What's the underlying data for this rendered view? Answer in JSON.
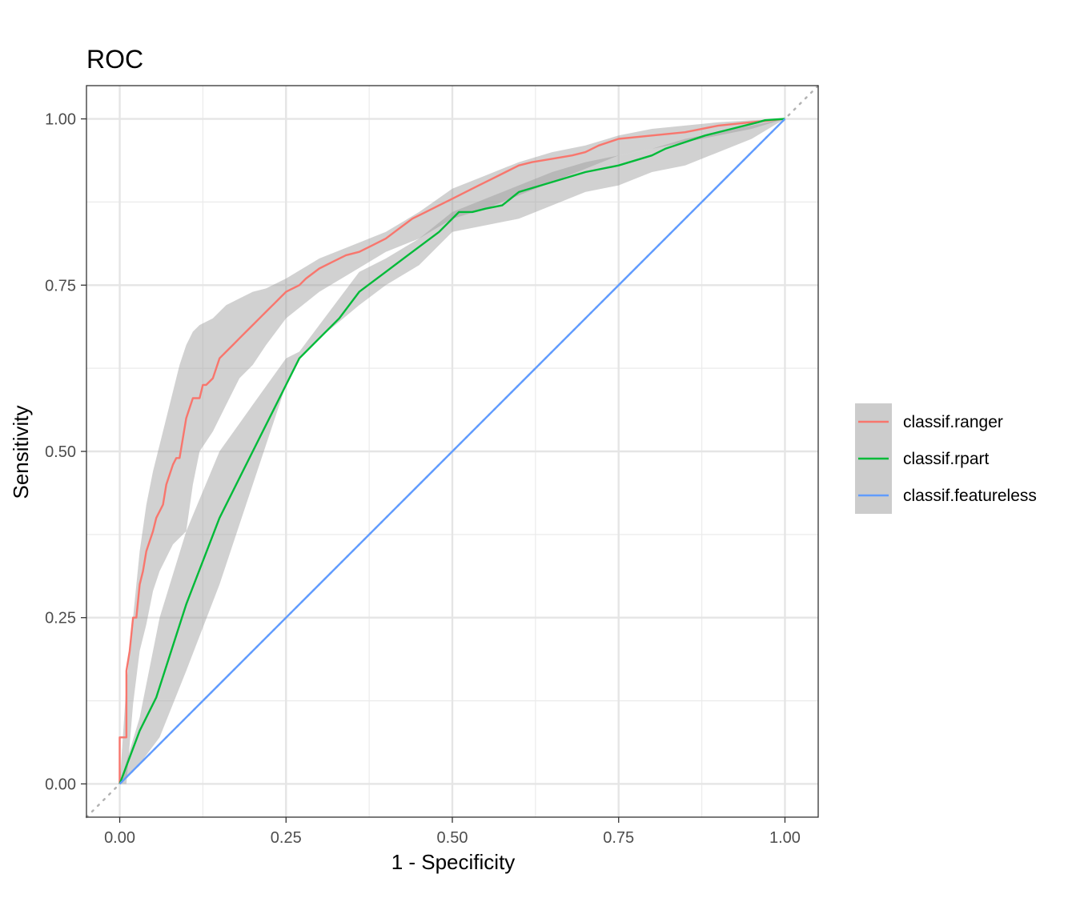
{
  "chart_data": {
    "type": "line",
    "title": "ROC",
    "xlabel": "1 - Specificity",
    "ylabel": "Sensitivity",
    "xlim": [
      -0.05,
      1.05
    ],
    "ylim": [
      -0.05,
      1.05
    ],
    "x_ticks": [
      "0.00",
      "0.25",
      "0.50",
      "0.75",
      "1.00"
    ],
    "y_ticks": [
      "0.00",
      "0.25",
      "0.50",
      "0.75",
      "1.00"
    ],
    "x_tick_values": [
      0,
      0.25,
      0.5,
      0.75,
      1
    ],
    "y_tick_values": [
      0,
      0.25,
      0.5,
      0.75,
      1
    ],
    "grid": true,
    "diagonal_reference": true,
    "legend_position": "right",
    "series": [
      {
        "name": "classif.ranger",
        "color": "#F8766D",
        "x": [
          0,
          0,
          0.01,
          0.01,
          0.015,
          0.02,
          0.025,
          0.03,
          0.035,
          0.04,
          0.05,
          0.055,
          0.06,
          0.065,
          0.07,
          0.08,
          0.085,
          0.09,
          0.1,
          0.11,
          0.12,
          0.125,
          0.13,
          0.14,
          0.15,
          0.16,
          0.17,
          0.18,
          0.19,
          0.2,
          0.21,
          0.22,
          0.23,
          0.24,
          0.25,
          0.26,
          0.27,
          0.28,
          0.3,
          0.32,
          0.34,
          0.36,
          0.38,
          0.4,
          0.42,
          0.44,
          0.46,
          0.48,
          0.5,
          0.52,
          0.54,
          0.56,
          0.58,
          0.6,
          0.62,
          0.65,
          0.68,
          0.7,
          0.72,
          0.75,
          0.8,
          0.85,
          0.9,
          0.95,
          1.0
        ],
        "y": [
          0,
          0.07,
          0.07,
          0.17,
          0.2,
          0.25,
          0.25,
          0.3,
          0.32,
          0.35,
          0.38,
          0.4,
          0.41,
          0.42,
          0.45,
          0.48,
          0.49,
          0.49,
          0.55,
          0.58,
          0.58,
          0.6,
          0.6,
          0.61,
          0.64,
          0.65,
          0.66,
          0.67,
          0.68,
          0.69,
          0.7,
          0.71,
          0.72,
          0.73,
          0.74,
          0.745,
          0.75,
          0.76,
          0.775,
          0.785,
          0.795,
          0.8,
          0.81,
          0.82,
          0.835,
          0.85,
          0.86,
          0.87,
          0.88,
          0.89,
          0.9,
          0.91,
          0.92,
          0.93,
          0.935,
          0.94,
          0.945,
          0.95,
          0.96,
          0.97,
          0.975,
          0.98,
          0.99,
          0.995,
          1.0
        ]
      },
      {
        "name": "classif.rpart",
        "color": "#00BA38",
        "x": [
          0,
          0.015,
          0.03,
          0.055,
          0.1,
          0.15,
          0.2,
          0.25,
          0.27,
          0.3,
          0.33,
          0.36,
          0.4,
          0.44,
          0.48,
          0.51,
          0.53,
          0.55,
          0.575,
          0.6,
          0.65,
          0.7,
          0.75,
          0.8,
          0.82,
          0.85,
          0.88,
          0.92,
          0.96,
          0.97,
          1.0
        ],
        "y": [
          0,
          0.04,
          0.08,
          0.13,
          0.27,
          0.4,
          0.5,
          0.6,
          0.64,
          0.67,
          0.7,
          0.74,
          0.77,
          0.8,
          0.83,
          0.86,
          0.86,
          0.865,
          0.87,
          0.89,
          0.905,
          0.92,
          0.93,
          0.945,
          0.955,
          0.965,
          0.975,
          0.985,
          0.995,
          0.998,
          1.0
        ]
      },
      {
        "name": "classif.featureless",
        "color": "#619CFF",
        "x": [
          0,
          1
        ],
        "y": [
          0,
          1
        ]
      }
    ],
    "confidence_bands": [
      {
        "series": "classif.ranger",
        "x": [
          0,
          0.01,
          0.02,
          0.03,
          0.04,
          0.05,
          0.06,
          0.07,
          0.08,
          0.09,
          0.1,
          0.11,
          0.12,
          0.14,
          0.16,
          0.18,
          0.2,
          0.22,
          0.25,
          0.3,
          0.35,
          0.4,
          0.45,
          0.5,
          0.55,
          0.6,
          0.65,
          0.7,
          0.75,
          0.8,
          0.85,
          0.9,
          0.95,
          1.0
        ],
        "upper": [
          0,
          0.15,
          0.25,
          0.35,
          0.42,
          0.47,
          0.51,
          0.55,
          0.59,
          0.63,
          0.66,
          0.68,
          0.69,
          0.7,
          0.72,
          0.73,
          0.74,
          0.745,
          0.76,
          0.79,
          0.81,
          0.83,
          0.86,
          0.895,
          0.915,
          0.935,
          0.95,
          0.96,
          0.975,
          0.985,
          0.99,
          0.995,
          0.998,
          1.0
        ],
        "lower": [
          0,
          0.0,
          0.12,
          0.2,
          0.24,
          0.29,
          0.32,
          0.34,
          0.36,
          0.37,
          0.38,
          0.45,
          0.5,
          0.53,
          0.57,
          0.61,
          0.63,
          0.66,
          0.7,
          0.74,
          0.77,
          0.8,
          0.82,
          0.85,
          0.865,
          0.885,
          0.905,
          0.925,
          0.945,
          0.955,
          0.965,
          0.975,
          0.985,
          1.0
        ]
      },
      {
        "series": "classif.rpart",
        "x": [
          0,
          0.03,
          0.06,
          0.1,
          0.15,
          0.2,
          0.25,
          0.27,
          0.3,
          0.36,
          0.4,
          0.45,
          0.5,
          0.55,
          0.6,
          0.65,
          0.7,
          0.75,
          0.8,
          0.85,
          0.9,
          0.95,
          1.0
        ],
        "upper": [
          0,
          0.1,
          0.25,
          0.38,
          0.5,
          0.57,
          0.64,
          0.65,
          0.69,
          0.77,
          0.79,
          0.82,
          0.86,
          0.88,
          0.9,
          0.92,
          0.935,
          0.945,
          0.955,
          0.97,
          0.98,
          0.99,
          1.0
        ],
        "lower": [
          0,
          0.03,
          0.07,
          0.17,
          0.3,
          0.45,
          0.6,
          0.64,
          0.67,
          0.72,
          0.75,
          0.78,
          0.83,
          0.84,
          0.85,
          0.87,
          0.89,
          0.9,
          0.92,
          0.93,
          0.95,
          0.97,
          1.0
        ]
      }
    ]
  }
}
